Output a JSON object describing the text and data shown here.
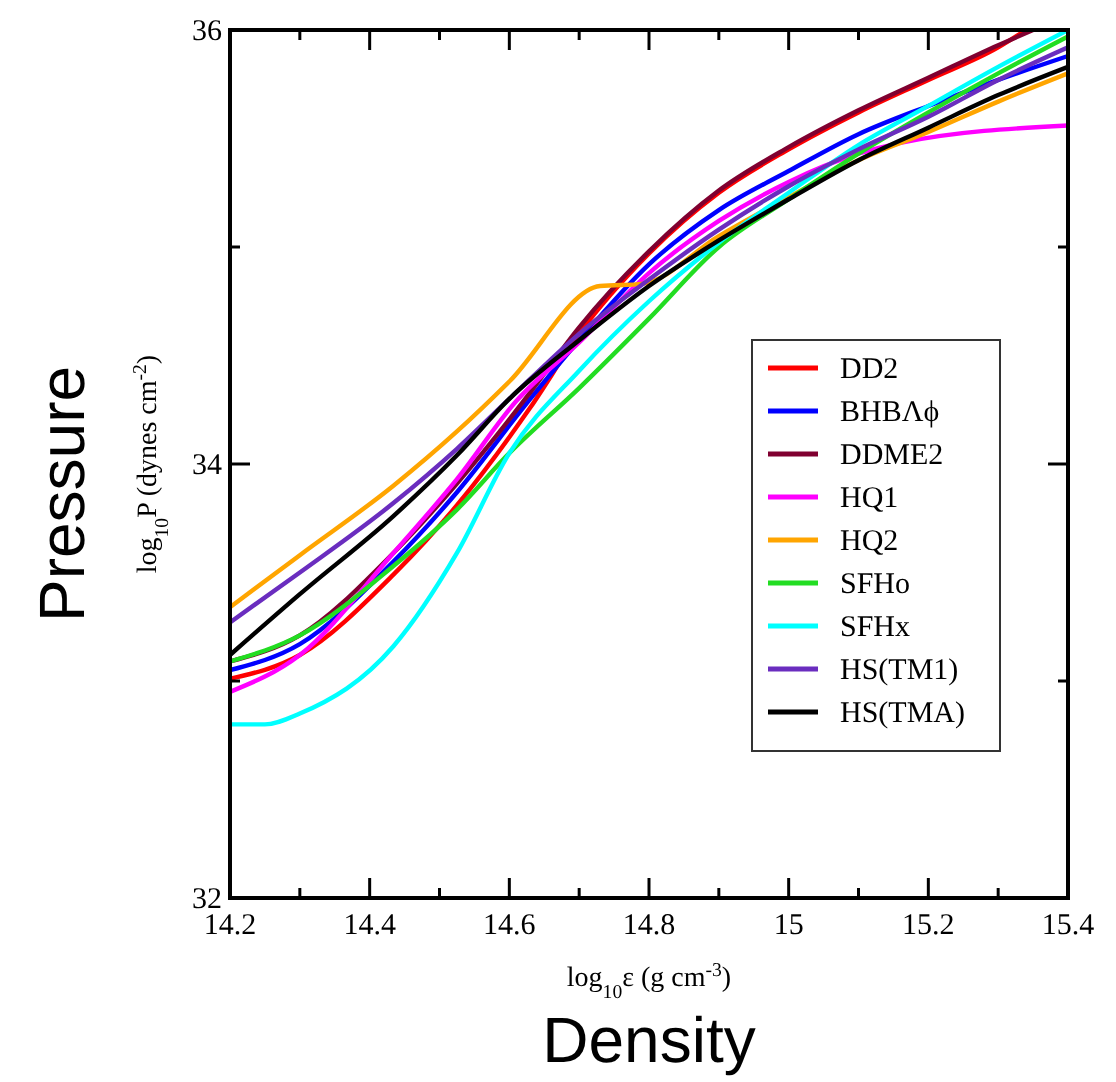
{
  "chart_data": {
    "type": "line",
    "xlabel": "log$_{10}$ε (g cm$^{-3}$)",
    "ylabel": "log$_{10}$P (dynes cm$^{-2}$)",
    "annotations": [
      "Pressure",
      "Density"
    ],
    "xlim": [
      14.2,
      15.4
    ],
    "ylim": [
      32,
      36
    ],
    "xticks": [
      {
        "value": 14.2,
        "label": "14.2"
      },
      {
        "value": 14.3,
        "label": null
      },
      {
        "value": 14.4,
        "label": "14.4"
      },
      {
        "value": 14.5,
        "label": null
      },
      {
        "value": 14.6,
        "label": "14.6"
      },
      {
        "value": 14.7,
        "label": null
      },
      {
        "value": 14.8,
        "label": "14.8"
      },
      {
        "value": 14.9,
        "label": null
      },
      15,
      {
        "value": 15.1,
        "label": null
      },
      {
        "value": 15.2,
        "label": "15.2"
      },
      {
        "value": 15.3,
        "label": null
      },
      {
        "value": 15.4,
        "label": "15.4"
      }
    ],
    "yticks": [
      32,
      {
        "value": 33,
        "label": null
      },
      34,
      {
        "value": 35,
        "label": null
      },
      36
    ],
    "legend": "right",
    "grid": false,
    "marker": "none",
    "line_style": "solid",
    "series": [
      {
        "name": "DD2",
        "color": "#ff0000",
        "x": [
          14.2,
          14.3,
          14.434,
          14.525,
          14.63,
          14.7,
          14.8,
          14.9,
          15.0,
          15.1,
          15.2,
          15.3,
          15.34
        ],
        "values": [
          33.01,
          33.12,
          33.49,
          33.81,
          34.26,
          34.6,
          34.97,
          35.25,
          35.45,
          35.62,
          35.77,
          35.92,
          36
        ]
      },
      {
        "name": "BHBΛϕ",
        "color": "#0000ff",
        "x": [
          14.2,
          14.3,
          14.434,
          14.525,
          14.63,
          14.7,
          14.8,
          14.9,
          15.0,
          15.1,
          15.2,
          15.3,
          15.4
        ],
        "values": [
          33.05,
          33.17,
          33.55,
          33.87,
          34.3,
          34.57,
          34.92,
          35.17,
          35.35,
          35.52,
          35.65,
          35.77,
          35.88
        ]
      },
      {
        "name": "DDME2",
        "color": "#800030",
        "x": [
          14.2,
          14.3,
          14.434,
          14.525,
          14.63,
          14.7,
          14.8,
          14.9,
          15.0,
          15.1,
          15.2,
          15.3,
          15.35
        ],
        "values": [
          33.09,
          33.21,
          33.59,
          33.91,
          34.33,
          34.63,
          34.98,
          35.26,
          35.46,
          35.63,
          35.78,
          35.93,
          36
        ]
      },
      {
        "name": "HQ1",
        "color": "#ff00ff",
        "x": [
          14.2,
          14.3,
          14.434,
          14.525,
          14.61,
          14.7,
          14.8,
          14.9,
          15.0,
          15.1,
          15.16,
          15.4
        ],
        "values": [
          32.95,
          33.12,
          33.59,
          33.93,
          34.29,
          34.56,
          34.88,
          35.12,
          35.3,
          35.43,
          35.48,
          35.56
        ]
      },
      {
        "name": "HQ2",
        "color": "#ffa500",
        "x": [
          14.2,
          14.3,
          14.434,
          14.525,
          14.6,
          14.73,
          14.79,
          14.9,
          15.0,
          15.1,
          15.2,
          15.3,
          15.4
        ],
        "values": [
          33.34,
          33.58,
          33.9,
          34.15,
          34.38,
          34.82,
          34.83,
          35.05,
          35.23,
          35.4,
          35.53,
          35.67,
          35.8
        ]
      },
      {
        "name": "SFHo",
        "color": "#22dd22",
        "x": [
          14.2,
          14.3,
          14.434,
          14.525,
          14.6,
          14.7,
          14.8,
          14.9,
          15.0,
          15.1,
          15.2,
          15.3,
          15.4
        ],
        "values": [
          33.09,
          33.21,
          33.53,
          33.79,
          34.05,
          34.35,
          34.67,
          35.0,
          35.22,
          35.43,
          35.62,
          35.8,
          35.97
        ]
      },
      {
        "name": "SFHx",
        "color": "#00ffff",
        "x": [
          14.2,
          14.25,
          14.3,
          14.434,
          14.525,
          14.6,
          14.7,
          14.8,
          14.9,
          15.0,
          15.1,
          15.2,
          15.3,
          15.4
        ],
        "values": [
          32.8,
          32.8,
          32.85,
          33.16,
          33.59,
          34.05,
          34.43,
          34.75,
          35.02,
          35.25,
          35.47,
          35.65,
          35.83,
          36.0
        ]
      },
      {
        "name": "HS(TM1)",
        "color": "#6a2dbf",
        "x": [
          14.2,
          14.3,
          14.434,
          14.525,
          14.6,
          14.7,
          14.8,
          14.9,
          15.0,
          15.1,
          15.2,
          15.3,
          15.4
        ],
        "values": [
          33.27,
          33.5,
          33.82,
          34.07,
          34.3,
          34.6,
          34.85,
          35.08,
          35.28,
          35.45,
          35.6,
          35.77,
          35.92
        ]
      },
      {
        "name": "HS(TMA)",
        "color": "#000000",
        "x": [
          14.2,
          14.3,
          14.434,
          14.525,
          14.6,
          14.7,
          14.8,
          14.9,
          15.0,
          15.1,
          15.2,
          15.3,
          15.4
        ],
        "values": [
          33.12,
          33.4,
          33.76,
          34.04,
          34.3,
          34.57,
          34.82,
          35.03,
          35.22,
          35.4,
          35.55,
          35.7,
          35.83
        ]
      }
    ]
  }
}
